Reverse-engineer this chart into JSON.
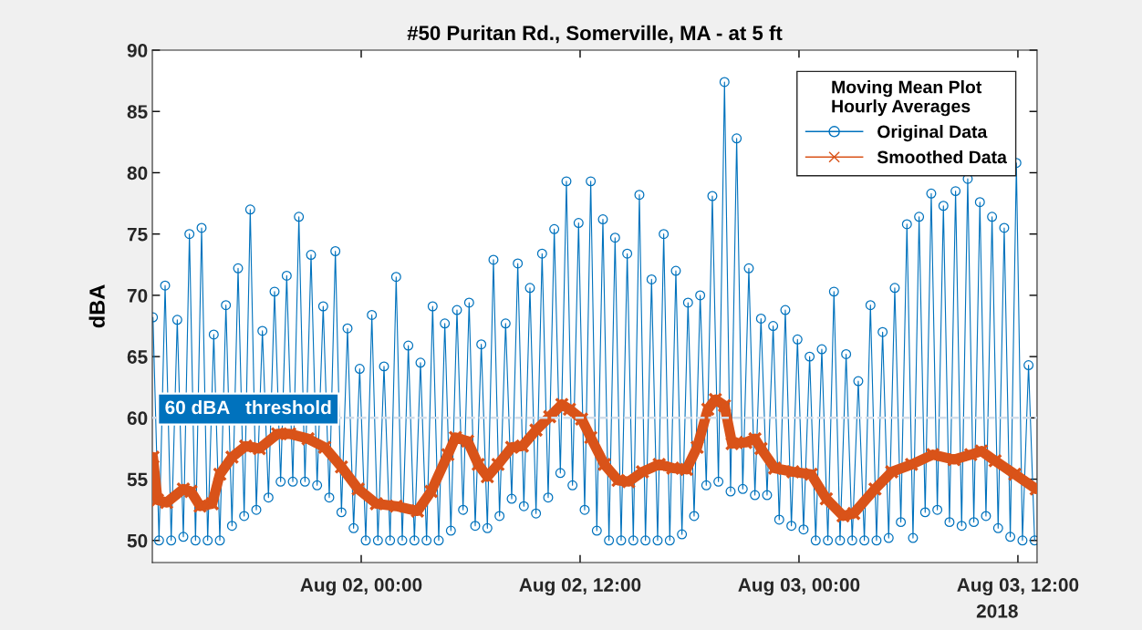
{
  "chart_data": {
    "type": "line",
    "title": "#50 Puritan Rd., Somerville, MA - at 5 ft",
    "ylabel": "dBA",
    "legend_title": "Moving Mean Plot\nHourly Averages",
    "series": [
      {
        "name": "Original Data",
        "color": "#0072bd",
        "marker": "circle",
        "x": [
          "2018-08-01T12:35",
          "2018-08-01T12:55",
          "2018-08-01T13:15",
          "2018-08-01T13:35",
          "2018-08-01T13:55",
          "2018-08-01T14:15",
          "2018-08-01T14:35",
          "2018-08-01T14:55",
          "2018-08-01T15:15",
          "2018-08-01T15:35",
          "2018-08-01T15:55",
          "2018-08-01T16:15",
          "2018-08-01T16:35",
          "2018-08-01T16:55",
          "2018-08-01T17:15",
          "2018-08-01T17:35",
          "2018-08-01T17:55",
          "2018-08-01T18:15",
          "2018-08-01T18:35",
          "2018-08-01T18:55",
          "2018-08-01T19:15",
          "2018-08-01T19:35",
          "2018-08-01T19:55",
          "2018-08-01T20:15",
          "2018-08-01T20:35",
          "2018-08-01T20:55",
          "2018-08-01T21:15",
          "2018-08-01T21:35",
          "2018-08-01T21:55",
          "2018-08-01T22:15",
          "2018-08-01T22:35",
          "2018-08-01T22:55",
          "2018-08-01T23:15",
          "2018-08-01T23:35",
          "2018-08-01T23:55",
          "2018-08-02T00:15",
          "2018-08-02T00:35",
          "2018-08-02T00:55",
          "2018-08-02T01:15",
          "2018-08-02T01:35",
          "2018-08-02T01:55",
          "2018-08-02T02:15",
          "2018-08-02T02:35",
          "2018-08-02T02:55",
          "2018-08-02T03:15",
          "2018-08-02T03:35",
          "2018-08-02T03:55",
          "2018-08-02T04:15",
          "2018-08-02T04:35",
          "2018-08-02T04:55",
          "2018-08-02T05:15",
          "2018-08-02T05:35",
          "2018-08-02T05:55",
          "2018-08-02T06:15",
          "2018-08-02T06:35",
          "2018-08-02T06:55",
          "2018-08-02T07:15",
          "2018-08-02T07:35",
          "2018-08-02T07:55",
          "2018-08-02T08:15",
          "2018-08-02T08:35",
          "2018-08-02T08:55",
          "2018-08-02T09:15",
          "2018-08-02T09:35",
          "2018-08-02T09:55",
          "2018-08-02T10:15",
          "2018-08-02T10:35",
          "2018-08-02T10:55",
          "2018-08-02T11:15",
          "2018-08-02T11:35",
          "2018-08-02T11:55",
          "2018-08-02T12:15",
          "2018-08-02T12:35",
          "2018-08-02T12:55",
          "2018-08-02T13:15",
          "2018-08-02T13:35",
          "2018-08-02T13:55",
          "2018-08-02T14:15",
          "2018-08-02T14:35",
          "2018-08-02T14:55",
          "2018-08-02T15:15",
          "2018-08-02T15:35",
          "2018-08-02T15:55",
          "2018-08-02T16:15",
          "2018-08-02T16:35",
          "2018-08-02T16:55",
          "2018-08-02T17:15",
          "2018-08-02T17:35",
          "2018-08-02T17:55",
          "2018-08-02T18:15",
          "2018-08-02T18:35",
          "2018-08-02T18:55",
          "2018-08-02T19:15",
          "2018-08-02T19:35",
          "2018-08-02T19:55",
          "2018-08-02T20:15",
          "2018-08-02T20:35",
          "2018-08-02T20:55",
          "2018-08-02T21:15",
          "2018-08-02T21:35",
          "2018-08-02T21:55",
          "2018-08-02T22:15",
          "2018-08-02T22:35",
          "2018-08-02T22:55",
          "2018-08-02T23:15",
          "2018-08-02T23:35",
          "2018-08-02T23:55",
          "2018-08-03T00:15",
          "2018-08-03T00:35",
          "2018-08-03T00:55",
          "2018-08-03T01:15",
          "2018-08-03T01:35",
          "2018-08-03T01:55",
          "2018-08-03T02:15",
          "2018-08-03T02:35",
          "2018-08-03T02:55",
          "2018-08-03T03:15",
          "2018-08-03T03:35",
          "2018-08-03T03:55",
          "2018-08-03T04:15",
          "2018-08-03T04:35",
          "2018-08-03T04:55",
          "2018-08-03T05:15",
          "2018-08-03T05:35",
          "2018-08-03T05:55",
          "2018-08-03T06:15",
          "2018-08-03T06:35",
          "2018-08-03T06:55",
          "2018-08-03T07:15",
          "2018-08-03T07:35",
          "2018-08-03T07:55",
          "2018-08-03T08:15",
          "2018-08-03T08:35",
          "2018-08-03T08:55",
          "2018-08-03T09:15",
          "2018-08-03T09:35",
          "2018-08-03T09:55",
          "2018-08-03T10:15",
          "2018-08-03T10:35",
          "2018-08-03T10:55",
          "2018-08-03T11:15",
          "2018-08-03T11:35",
          "2018-08-03T11:55",
          "2018-08-03T12:15",
          "2018-08-03T12:35",
          "2018-08-03T12:55"
        ],
        "values": [
          68.2,
          50,
          70.8,
          50,
          68.0,
          50.3,
          75.0,
          50,
          75.5,
          50,
          66.8,
          50,
          69.2,
          51.2,
          72.2,
          52.0,
          77.0,
          52.5,
          67.1,
          53.5,
          70.3,
          54.8,
          71.6,
          54.8,
          76.4,
          54.8,
          73.3,
          54.5,
          69.1,
          53.5,
          73.6,
          52.3,
          67.3,
          51.0,
          64.0,
          50,
          68.4,
          50,
          64.2,
          50,
          71.5,
          50,
          65.9,
          50,
          64.5,
          50,
          69.1,
          50,
          67.7,
          50.8,
          68.8,
          52.5,
          69.4,
          51.2,
          66.0,
          51.0,
          72.9,
          52.0,
          67.7,
          53.4,
          72.6,
          52.8,
          70.6,
          52.2,
          73.4,
          53.5,
          75.4,
          55.5,
          79.3,
          54.5,
          75.9,
          52.5,
          79.3,
          50.8,
          76.2,
          50,
          74.7,
          50,
          73.4,
          50,
          78.2,
          50,
          71.3,
          50,
          75.0,
          50,
          72.0,
          50.5,
          69.4,
          52.0,
          70.0,
          54.5,
          78.1,
          54.8,
          87.4,
          54.0,
          82.8,
          54.2,
          72.2,
          53.7,
          68.1,
          53.7,
          67.5,
          51.7,
          68.8,
          51.2,
          66.4,
          50.9,
          65.0,
          50,
          65.6,
          50,
          70.3,
          50,
          65.2,
          50,
          63.0,
          50,
          69.2,
          50,
          67.0,
          50.2,
          70.6,
          51.5,
          75.8,
          50.2,
          76.4,
          52.3,
          78.3,
          52.5,
          77.3,
          51.5,
          78.5,
          51.2,
          79.5,
          51.5,
          77.6,
          52.0,
          76.4,
          51.0,
          75.5,
          50.3,
          80.8,
          50,
          64.3,
          50
        ]
      },
      {
        "name": "Smoothed Data",
        "color": "#d95319",
        "marker": "cross",
        "x": [
          "2018-08-01T12:35",
          "2018-08-01T12:50",
          "2018-08-01T13:20",
          "2018-08-01T14:15",
          "2018-08-01T14:40",
          "2018-08-01T15:10",
          "2018-08-01T15:50",
          "2018-08-01T16:15",
          "2018-08-01T16:55",
          "2018-08-01T17:40",
          "2018-08-01T18:25",
          "2018-08-01T19:25",
          "2018-08-01T20:05",
          "2018-08-01T21:05",
          "2018-08-01T22:00",
          "2018-08-01T22:55",
          "2018-08-01T23:50",
          "2018-08-02T00:50",
          "2018-08-02T01:55",
          "2018-08-02T03:05",
          "2018-08-02T03:50",
          "2018-08-02T04:45",
          "2018-08-02T05:10",
          "2018-08-02T05:50",
          "2018-08-02T06:25",
          "2018-08-02T06:55",
          "2018-08-02T07:30",
          "2018-08-02T08:15",
          "2018-08-02T08:50",
          "2018-08-02T09:35",
          "2018-08-02T10:20",
          "2018-08-02T11:00",
          "2018-08-02T11:25",
          "2018-08-02T12:05",
          "2018-08-02T12:35",
          "2018-08-02T13:20",
          "2018-08-02T14:05",
          "2018-08-02T14:40",
          "2018-08-02T15:25",
          "2018-08-02T16:20",
          "2018-08-02T17:05",
          "2018-08-02T17:50",
          "2018-08-02T18:25",
          "2018-08-02T19:00",
          "2018-08-02T19:25",
          "2018-08-02T19:55",
          "2018-08-02T20:20",
          "2018-08-02T21:05",
          "2018-08-02T21:35",
          "2018-08-02T21:55",
          "2018-08-02T22:40",
          "2018-08-02T23:40",
          "2018-08-03T00:40",
          "2018-08-03T01:30",
          "2018-08-03T02:25",
          "2018-08-03T03:00",
          "2018-08-03T04:10",
          "2018-08-03T05:05",
          "2018-08-03T06:10",
          "2018-08-03T07:20",
          "2018-08-03T08:30",
          "2018-08-03T09:25",
          "2018-08-03T10:00",
          "2018-08-03T10:45",
          "2018-08-03T11:50",
          "2018-08-03T13:00"
        ],
        "values": [
          56.8,
          53.3,
          53.1,
          54.2,
          54.0,
          52.8,
          53.0,
          55.4,
          56.8,
          57.7,
          57.5,
          58.7,
          58.7,
          58.3,
          57.6,
          56.0,
          54.2,
          53.0,
          52.8,
          52.4,
          54.0,
          57.0,
          58.4,
          58.1,
          56.2,
          55.2,
          56.2,
          57.6,
          57.7,
          59.0,
          60.1,
          61.1,
          60.7,
          59.9,
          58.4,
          56.2,
          54.9,
          54.8,
          55.6,
          56.2,
          55.9,
          55.8,
          57.6,
          60.7,
          61.5,
          61.0,
          57.9,
          58.0,
          58.3,
          57.5,
          55.9,
          55.6,
          55.4,
          53.4,
          52.0,
          52.2,
          54.2,
          55.6,
          56.2,
          57.0,
          56.6,
          57.0,
          57.3,
          56.5,
          55.4,
          54.2
        ]
      }
    ],
    "xlim": [
      "2018-08-01T12:33",
      "2018-08-03T13:03"
    ],
    "xticks": [
      {
        "value": "2018-08-02T00:00",
        "label": "Aug 02, 00:00"
      },
      {
        "value": "2018-08-02T12:00",
        "label": "Aug 02, 12:00"
      },
      {
        "value": "2018-08-03T00:00",
        "label": "Aug 03, 00:00"
      },
      {
        "value": "2018-08-03T12:00",
        "label": "Aug 03, 12:00"
      }
    ],
    "ylim": [
      48.2,
      90
    ],
    "yticks": [
      50,
      55,
      60,
      65,
      70,
      75,
      80,
      85,
      90
    ],
    "ref_lines": [
      {
        "axis": "y",
        "value": 60,
        "label": "60 dBA   threshold",
        "color": "#d0dcea",
        "line_style": "dashed"
      }
    ],
    "annotations": [
      "2018"
    ],
    "legend": "top right",
    "grid": false
  }
}
